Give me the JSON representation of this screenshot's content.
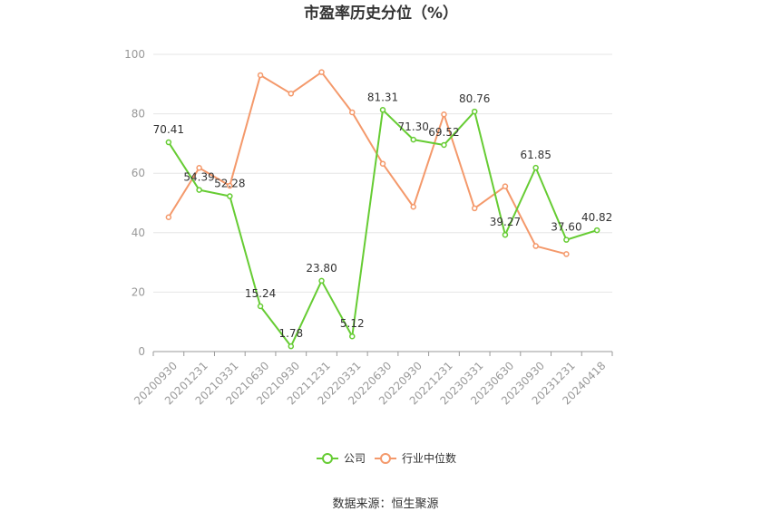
{
  "chart_data": {
    "type": "line",
    "title": "市盈率历史分位（%）",
    "categories": [
      "20200930",
      "20201231",
      "20210331",
      "20210630",
      "20210930",
      "20211231",
      "20220331",
      "20220630",
      "20220930",
      "20221231",
      "20230331",
      "20230630",
      "20230930",
      "20231231",
      "20240418"
    ],
    "ylim": [
      0,
      100
    ],
    "yticks": [
      0,
      20,
      40,
      60,
      80,
      100
    ],
    "grid": true,
    "legend_position": "bottom",
    "series": [
      {
        "name": "公司",
        "color": "#66cc33",
        "values": [
          70.41,
          54.39,
          52.28,
          15.24,
          1.78,
          23.8,
          5.12,
          81.31,
          71.3,
          69.52,
          80.76,
          39.27,
          61.85,
          37.6,
          40.82
        ],
        "labels": [
          "70.41",
          "54.39",
          "52.28",
          "15.24",
          "1.78",
          "23.80",
          "5.12",
          "81.31",
          "71.30",
          "69.52",
          "80.76",
          "39.27",
          "61.85",
          "37.60",
          "40.82"
        ]
      },
      {
        "name": "行业中位数",
        "color": "#f4996b",
        "values": [
          45.2,
          61.8,
          55.8,
          93.0,
          86.8,
          94.0,
          80.5,
          63.2,
          48.7,
          79.8,
          48.2,
          55.6,
          35.5,
          32.8,
          null
        ]
      }
    ]
  },
  "source": "数据来源：恒生聚源"
}
